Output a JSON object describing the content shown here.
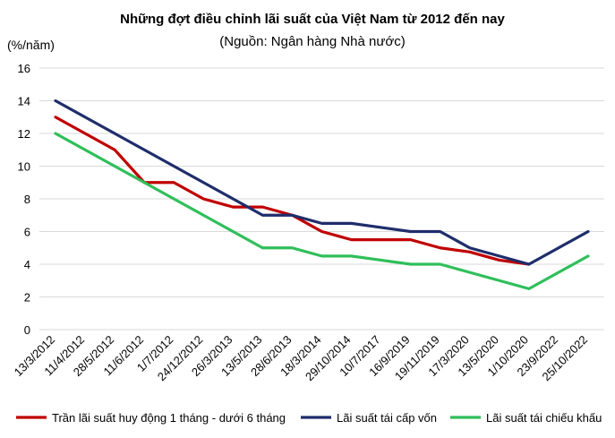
{
  "chart_data": {
    "type": "line",
    "title": "Những đợt điều chỉnh lãi suất của Việt Nam từ 2012 đến nay",
    "subtitle": "(Nguồn: Ngân hàng Nhà nước)",
    "ylabel": "(%/năm)",
    "ylim": [
      0,
      16
    ],
    "yticks": [
      "0",
      "2",
      "4",
      "6",
      "8",
      "10",
      "12",
      "14",
      "16"
    ],
    "grid": true,
    "legend_position": "bottom",
    "categories": [
      "13/3/2012",
      "11/4/2012",
      "28/5/2012",
      "11/6/2012",
      "1/7/2012",
      "24/12/2012",
      "26/3/2013",
      "13/5/2013",
      "28/6/2013",
      "18/3/2014",
      "29/10/2014",
      "10/7/2017",
      "16/9/2019",
      "19/11/2019",
      "17/3/2020",
      "13/5/2020",
      "1/10/2020",
      "23/9/2022",
      "25/10/2022"
    ],
    "series": [
      {
        "name": "Trần lãi suất huy động 1 tháng - dưới 6 tháng",
        "color": "#c00000",
        "values": [
          13,
          12,
          11,
          9,
          9,
          8,
          7.5,
          7.5,
          7,
          6,
          5.5,
          5.5,
          5.5,
          5,
          4.75,
          4.25,
          4,
          null,
          null
        ]
      },
      {
        "name": "Lãi suất tái cấp vốn",
        "color": "#1f2d6b",
        "values": [
          14,
          13,
          12,
          11,
          10,
          9,
          8,
          7,
          7,
          6.5,
          6.5,
          6.25,
          6,
          6,
          5,
          4.5,
          4,
          5,
          6
        ]
      },
      {
        "name": "Lãi suất tái chiếu khấu",
        "color": "#2fbf5a",
        "values": [
          12,
          11,
          10,
          9,
          8,
          7,
          6,
          5,
          5,
          4.5,
          4.5,
          4.25,
          4,
          4,
          3.5,
          3,
          2.5,
          3.5,
          4.5
        ]
      }
    ]
  }
}
